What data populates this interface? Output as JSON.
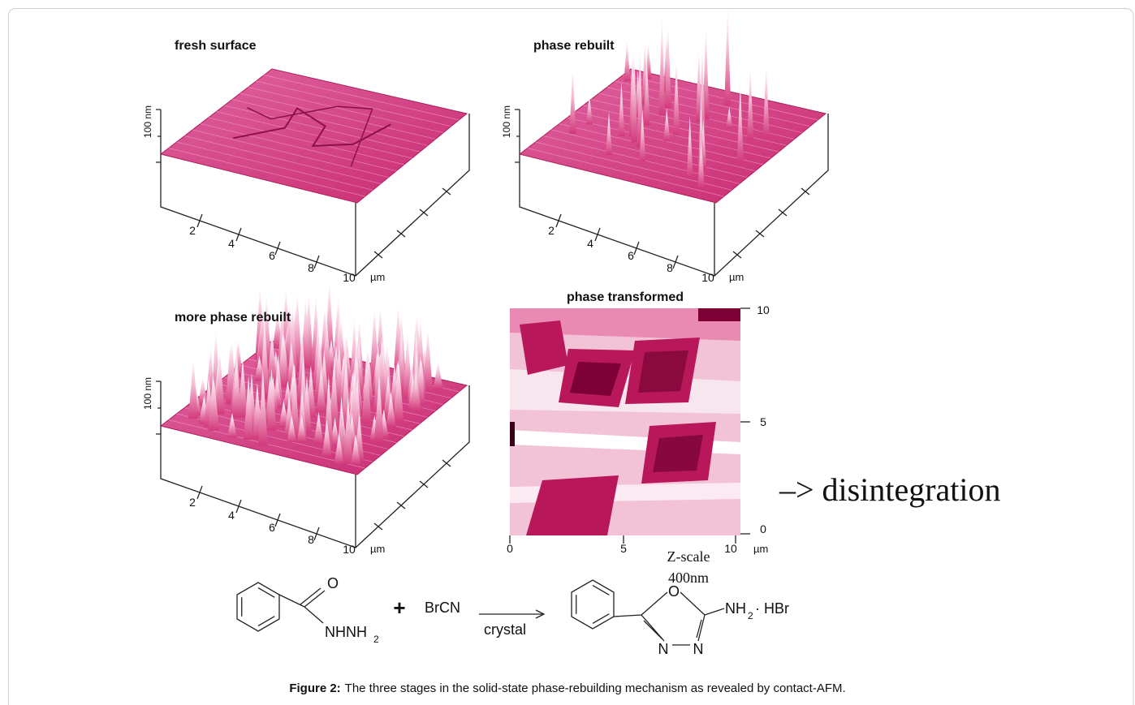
{
  "panels": [
    {
      "title": "fresh surface",
      "z_label": "100 nm",
      "x_ticks": [
        "2",
        "4",
        "6",
        "8",
        "10"
      ],
      "unit": "µm"
    },
    {
      "title": "phase rebuilt",
      "z_label": "100 nm",
      "x_ticks": [
        "2",
        "4",
        "6",
        "8",
        "10"
      ],
      "unit": "µm"
    },
    {
      "title": "more phase rebuilt",
      "z_label": "100 nm",
      "x_ticks": [
        "2",
        "4",
        "6",
        "8",
        "10"
      ],
      "unit": "µm"
    },
    {
      "title": "phase transformed",
      "x_ticks": [
        "0",
        "5",
        "10"
      ],
      "y_ticks": [
        "0",
        "5",
        "10"
      ],
      "unit": "µm",
      "z_scale": "Z-scale",
      "z_value": "400nm"
    }
  ],
  "annotation": "–> disintegration",
  "reaction": {
    "reactant": {
      "oxygen": "O",
      "group": "NHNH",
      "group_sub": "2"
    },
    "plus": "+",
    "reagent": "BrCN",
    "condition": "crystal",
    "product": {
      "oxygen": "O",
      "nitrogen_left": "N",
      "nitrogen_right": "N",
      "amine": "NH",
      "amine_sub": "2",
      "salt": "· HBr"
    }
  },
  "caption": {
    "label": "Figure 2:",
    "text": "The three stages in the solid-state phase-rebuilding mechanism as revealed by contact-AFM."
  }
}
